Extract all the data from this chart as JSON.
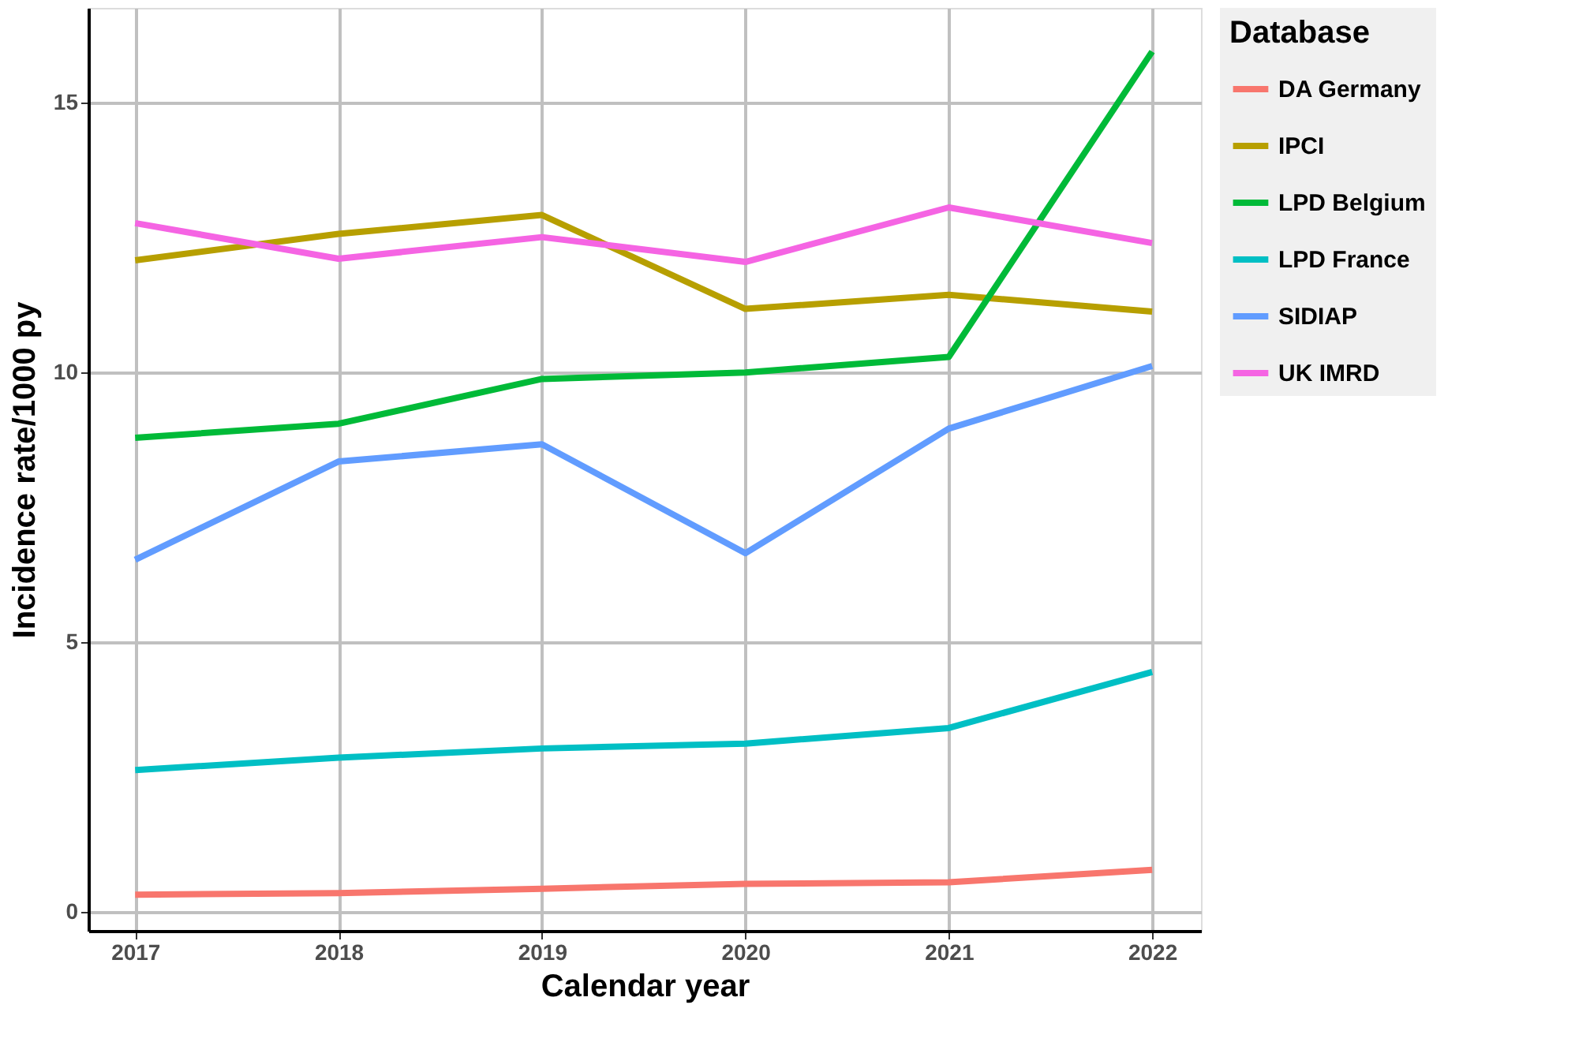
{
  "chart_data": {
    "type": "line",
    "xlabel": "Calendar year",
    "ylabel": "Incidence rate/1000 py",
    "legend_title": "Database",
    "legend": "right",
    "grid": true,
    "line_style": "solid",
    "x": [
      2017,
      2018,
      2019,
      2020,
      2021,
      2022
    ],
    "xlim": [
      2016.77,
      2022.24
    ],
    "xticks": [
      2017,
      2018,
      2019,
      2020,
      2021,
      2022
    ],
    "ylim": [
      -0.35,
      16.76
    ],
    "yticks": [
      0,
      5,
      10,
      15
    ],
    "series": [
      {
        "name": "DA Germany",
        "color": "#f8766d",
        "values": [
          0.32,
          0.35,
          0.43,
          0.52,
          0.55,
          0.78
        ]
      },
      {
        "name": "IPCI",
        "color": "#b79f00",
        "values": [
          12.08,
          12.57,
          12.92,
          11.18,
          11.44,
          11.13
        ]
      },
      {
        "name": "LPD Belgium",
        "color": "#00ba38",
        "values": [
          8.79,
          9.05,
          9.88,
          10.0,
          10.29,
          15.95
        ]
      },
      {
        "name": "LPD France",
        "color": "#00bfc4",
        "values": [
          2.63,
          2.86,
          3.03,
          3.12,
          3.41,
          4.45
        ]
      },
      {
        "name": "SIDIAP",
        "color": "#619cff",
        "values": [
          6.53,
          8.35,
          8.67,
          6.65,
          8.96,
          10.12
        ]
      },
      {
        "name": "UK IMRD",
        "color": "#f564e3",
        "values": [
          12.77,
          12.11,
          12.51,
          12.05,
          13.06,
          12.4
        ]
      }
    ]
  }
}
